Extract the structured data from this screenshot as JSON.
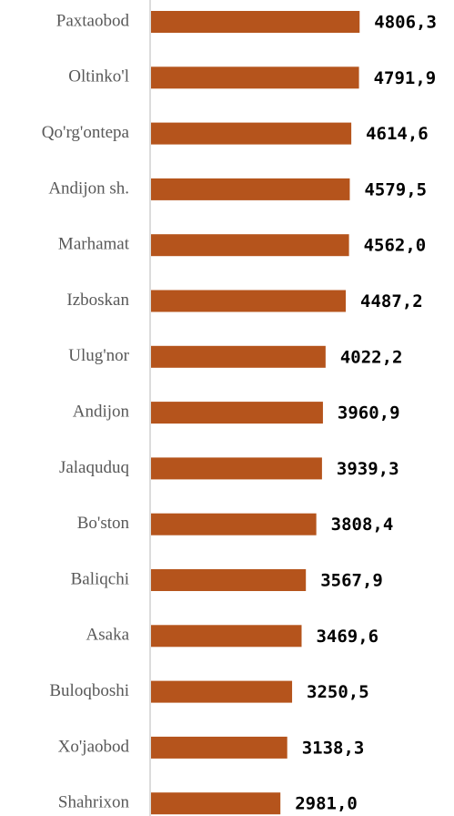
{
  "chart_data": {
    "type": "barh",
    "categories": [
      "Paxtaobod",
      "Oltinko'l",
      "Qo'rg'ontepa",
      "Andijon sh.",
      "Marhamat",
      "Izboskan",
      "Ulug'nor",
      "Andijon",
      "Jalaquduq",
      "Bo'ston",
      "Baliqchi",
      "Asaka",
      "Buloqboshi",
      "Xo'jaobod",
      "Shahrixon"
    ],
    "values": [
      4806.3,
      4791.9,
      4614.6,
      4579.5,
      4562.0,
      4487.2,
      4022.2,
      3960.9,
      3939.3,
      3808.4,
      3567.9,
      3469.6,
      3250.5,
      3138.3,
      2981.0
    ],
    "value_labels": [
      "4806,3",
      "4791,9",
      "4614,6",
      "4579,5",
      "4562,0",
      "4487,2",
      "4022,2",
      "3960,9",
      "3939,3",
      "3808,4",
      "3567,9",
      "3469,6",
      "3250,5",
      "3138,3",
      "2981,0"
    ],
    "color": "#b5541c",
    "xlim": [
      0,
      5000
    ]
  }
}
